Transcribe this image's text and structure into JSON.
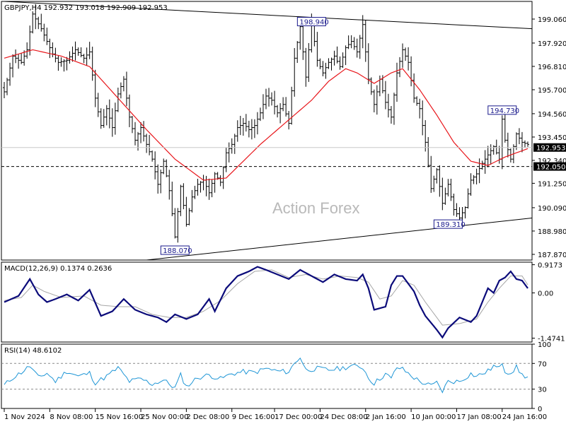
{
  "window": {
    "header": "GBPJPY,H4  192.932 193.018 192.909 192.953",
    "watermark": "Action Forex"
  },
  "colors": {
    "price": "#000000",
    "ma": "#e8161b",
    "macd": "#0b0b7a",
    "signal": "#a6a6a6",
    "rsi": "#1f96d6",
    "grid": "#c8c8c8",
    "tag_current": "#000000",
    "tag_level": "#000000",
    "annotation_border": "#1a1a8c"
  },
  "chart_data": [
    {
      "type": "line",
      "name": "price",
      "ylim": [
        187.6,
        199.9
      ],
      "yticks": [
        {
          "label": "199.060",
          "value": 199.06
        },
        {
          "label": "197.920",
          "value": 197.92
        },
        {
          "label": "196.810",
          "value": 196.81
        },
        {
          "label": "195.700",
          "value": 195.7
        },
        {
          "label": "194.560",
          "value": 194.56
        },
        {
          "label": "193.450",
          "value": 193.45
        },
        {
          "label": "192.340",
          "value": 192.34
        },
        {
          "label": "191.250",
          "value": 191.25
        },
        {
          "label": "190.090",
          "value": 190.09
        },
        {
          "label": "188.980",
          "value": 188.98
        },
        {
          "label": "187.870",
          "value": 187.87
        }
      ],
      "price_tags": [
        {
          "label": "192.953",
          "value": 192.953,
          "style": "current"
        },
        {
          "label": "192.050",
          "value": 192.05,
          "style": "level"
        }
      ],
      "annotations": [
        {
          "label": "198.940",
          "value": 198.94,
          "bar": 108
        },
        {
          "label": "188.070",
          "value": 188.07,
          "bar": 60
        },
        {
          "label": "194.730",
          "value": 194.73,
          "bar": 175
        },
        {
          "label": "189.310",
          "value": 189.31,
          "bar": 156
        }
      ],
      "close_anchors": [
        [
          0,
          195.6
        ],
        [
          3,
          197.3
        ],
        [
          6,
          197.0
        ],
        [
          8,
          197.6
        ],
        [
          10,
          199.3
        ],
        [
          13,
          198.6
        ],
        [
          15,
          198.0
        ],
        [
          17,
          197.4
        ],
        [
          19,
          197.0
        ],
        [
          22,
          197.1
        ],
        [
          25,
          197.6
        ],
        [
          28,
          197.2
        ],
        [
          30,
          197.5
        ],
        [
          32,
          195.3
        ],
        [
          34,
          194.0
        ],
        [
          36,
          194.8
        ],
        [
          38,
          193.9
        ],
        [
          40,
          195.5
        ],
        [
          42,
          196.2
        ],
        [
          44,
          194.4
        ],
        [
          46,
          193.3
        ],
        [
          48,
          193.9
        ],
        [
          50,
          193.1
        ],
        [
          52,
          192.4
        ],
        [
          54,
          191.2
        ],
        [
          56,
          192.3
        ],
        [
          58,
          190.9
        ],
        [
          60,
          188.7
        ],
        [
          62,
          191.1
        ],
        [
          64,
          189.3
        ],
        [
          66,
          190.6
        ],
        [
          68,
          191.2
        ],
        [
          70,
          191.4
        ],
        [
          72,
          190.8
        ],
        [
          74,
          191.7
        ],
        [
          76,
          191.3
        ],
        [
          78,
          192.7
        ],
        [
          80,
          193.1
        ],
        [
          82,
          193.9
        ],
        [
          84,
          194.1
        ],
        [
          86,
          193.8
        ],
        [
          88,
          194.0
        ],
        [
          90,
          194.6
        ],
        [
          92,
          195.4
        ],
        [
          94,
          195.2
        ],
        [
          96,
          194.6
        ],
        [
          98,
          195.0
        ],
        [
          100,
          194.1
        ],
        [
          102,
          197.2
        ],
        [
          104,
          198.7
        ],
        [
          106,
          196.3
        ],
        [
          108,
          198.9
        ],
        [
          110,
          197.1
        ],
        [
          112,
          196.5
        ],
        [
          114,
          197.0
        ],
        [
          116,
          197.3
        ],
        [
          118,
          196.8
        ],
        [
          120,
          197.7
        ],
        [
          122,
          198.0
        ],
        [
          124,
          197.5
        ],
        [
          126,
          198.8
        ],
        [
          128,
          196.2
        ],
        [
          130,
          195.0
        ],
        [
          132,
          196.2
        ],
        [
          134,
          195.1
        ],
        [
          136,
          194.4
        ],
        [
          138,
          196.5
        ],
        [
          140,
          197.6
        ],
        [
          142,
          197.0
        ],
        [
          144,
          195.3
        ],
        [
          146,
          194.8
        ],
        [
          148,
          193.2
        ],
        [
          150,
          191.0
        ],
        [
          152,
          191.9
        ],
        [
          154,
          190.3
        ],
        [
          156,
          191.2
        ],
        [
          158,
          190.0
        ],
        [
          160,
          189.6
        ],
        [
          162,
          190.1
        ],
        [
          164,
          191.4
        ],
        [
          166,
          191.7
        ],
        [
          168,
          192.2
        ],
        [
          170,
          192.6
        ],
        [
          172,
          193.0
        ],
        [
          174,
          192.4
        ],
        [
          175,
          194.3
        ],
        [
          176,
          193.3
        ],
        [
          178,
          192.4
        ],
        [
          180,
          193.6
        ],
        [
          182,
          193.2
        ],
        [
          184,
          193.1
        ]
      ],
      "ma_anchors": [
        [
          0,
          197.2
        ],
        [
          10,
          197.6
        ],
        [
          20,
          197.3
        ],
        [
          30,
          196.8
        ],
        [
          40,
          195.3
        ],
        [
          50,
          193.8
        ],
        [
          60,
          192.4
        ],
        [
          70,
          191.4
        ],
        [
          78,
          191.5
        ],
        [
          84,
          192.3
        ],
        [
          90,
          193.1
        ],
        [
          96,
          193.8
        ],
        [
          102,
          194.5
        ],
        [
          108,
          195.2
        ],
        [
          114,
          196.1
        ],
        [
          120,
          196.7
        ],
        [
          124,
          196.5
        ],
        [
          130,
          196.0
        ],
        [
          136,
          196.5
        ],
        [
          140,
          196.7
        ],
        [
          146,
          195.7
        ],
        [
          152,
          194.5
        ],
        [
          158,
          193.2
        ],
        [
          164,
          192.3
        ],
        [
          170,
          192.1
        ],
        [
          176,
          192.5
        ],
        [
          184,
          192.9
        ]
      ],
      "trendlines": [
        {
          "from": [
            0,
            199.9
          ],
          "to": [
            186,
            198.6
          ]
        },
        {
          "from": [
            50,
            187.6
          ],
          "to": [
            186,
            189.6
          ]
        }
      ],
      "support_level": 192.05,
      "bars": 185
    },
    {
      "type": "line",
      "name": "MACD",
      "label": "MACD(12,26,9) 0.1374 0.2636",
      "ylim": [
        -1.6,
        1.0
      ],
      "yticks": [
        {
          "label": "0.9173",
          "value": 0.9173
        },
        {
          "label": "0.00",
          "value": 0.0
        },
        {
          "label": "-1.4741",
          "value": -1.4741
        }
      ],
      "macd_anchors": [
        [
          0,
          -0.3
        ],
        [
          5,
          -0.1
        ],
        [
          9,
          0.45
        ],
        [
          12,
          -0.05
        ],
        [
          15,
          -0.3
        ],
        [
          18,
          -0.2
        ],
        [
          22,
          -0.05
        ],
        [
          26,
          -0.25
        ],
        [
          30,
          0.1
        ],
        [
          34,
          -0.75
        ],
        [
          38,
          -0.6
        ],
        [
          42,
          -0.2
        ],
        [
          46,
          -0.55
        ],
        [
          50,
          -0.7
        ],
        [
          54,
          -0.8
        ],
        [
          57,
          -0.95
        ],
        [
          60,
          -0.7
        ],
        [
          64,
          -0.85
        ],
        [
          68,
          -0.7
        ],
        [
          72,
          -0.2
        ],
        [
          74,
          -0.6
        ],
        [
          78,
          0.15
        ],
        [
          82,
          0.55
        ],
        [
          86,
          0.7
        ],
        [
          89,
          0.85
        ],
        [
          92,
          0.75
        ],
        [
          96,
          0.6
        ],
        [
          100,
          0.45
        ],
        [
          104,
          0.75
        ],
        [
          108,
          0.55
        ],
        [
          112,
          0.35
        ],
        [
          116,
          0.6
        ],
        [
          120,
          0.45
        ],
        [
          124,
          0.4
        ],
        [
          126,
          0.6
        ],
        [
          128,
          0.15
        ],
        [
          130,
          -0.55
        ],
        [
          134,
          -0.45
        ],
        [
          136,
          0.25
        ],
        [
          138,
          0.55
        ],
        [
          140,
          0.55
        ],
        [
          144,
          0.05
        ],
        [
          146,
          -0.4
        ],
        [
          148,
          -0.75
        ],
        [
          152,
          -1.2
        ],
        [
          154,
          -1.45
        ],
        [
          156,
          -1.15
        ],
        [
          160,
          -0.8
        ],
        [
          164,
          -0.95
        ],
        [
          166,
          -0.75
        ],
        [
          170,
          0.15
        ],
        [
          172,
          0.0
        ],
        [
          174,
          0.4
        ],
        [
          176,
          0.5
        ],
        [
          178,
          0.7
        ],
        [
          180,
          0.45
        ],
        [
          182,
          0.4
        ],
        [
          184,
          0.15
        ]
      ],
      "signal_anchors": [
        [
          0,
          -0.25
        ],
        [
          6,
          -0.15
        ],
        [
          10,
          0.25
        ],
        [
          14,
          0.05
        ],
        [
          20,
          -0.15
        ],
        [
          28,
          -0.1
        ],
        [
          34,
          -0.4
        ],
        [
          40,
          -0.45
        ],
        [
          46,
          -0.45
        ],
        [
          52,
          -0.7
        ],
        [
          58,
          -0.8
        ],
        [
          64,
          -0.8
        ],
        [
          70,
          -0.6
        ],
        [
          76,
          -0.25
        ],
        [
          82,
          0.3
        ],
        [
          88,
          0.7
        ],
        [
          94,
          0.75
        ],
        [
          100,
          0.5
        ],
        [
          106,
          0.6
        ],
        [
          112,
          0.45
        ],
        [
          118,
          0.55
        ],
        [
          124,
          0.5
        ],
        [
          128,
          0.35
        ],
        [
          132,
          -0.2
        ],
        [
          136,
          -0.1
        ],
        [
          140,
          0.4
        ],
        [
          144,
          0.25
        ],
        [
          148,
          -0.3
        ],
        [
          154,
          -1.05
        ],
        [
          160,
          -1.0
        ],
        [
          166,
          -0.85
        ],
        [
          170,
          -0.3
        ],
        [
          174,
          0.15
        ],
        [
          178,
          0.55
        ],
        [
          182,
          0.55
        ],
        [
          184,
          0.26
        ]
      ],
      "bars": 185
    },
    {
      "type": "line",
      "name": "RSI",
      "label": "RSI(14) 48.6102",
      "ylim": [
        0,
        100
      ],
      "yticks": [
        {
          "label": "100",
          "value": 100
        },
        {
          "label": "70",
          "value": 70
        },
        {
          "label": "30",
          "value": 30
        },
        {
          "label": "0",
          "value": 0
        }
      ],
      "dashed_levels": [
        70,
        30
      ],
      "rsi_anchors": [
        [
          0,
          36
        ],
        [
          3,
          48
        ],
        [
          6,
          56
        ],
        [
          9,
          66
        ],
        [
          12,
          48
        ],
        [
          15,
          55
        ],
        [
          18,
          42
        ],
        [
          22,
          58
        ],
        [
          26,
          50
        ],
        [
          30,
          55
        ],
        [
          32,
          40
        ],
        [
          36,
          50
        ],
        [
          40,
          63
        ],
        [
          44,
          42
        ],
        [
          48,
          46
        ],
        [
          52,
          38
        ],
        [
          56,
          44
        ],
        [
          60,
          32
        ],
        [
          62,
          52
        ],
        [
          64,
          34
        ],
        [
          68,
          48
        ],
        [
          72,
          52
        ],
        [
          76,
          46
        ],
        [
          80,
          54
        ],
        [
          84,
          57
        ],
        [
          88,
          56
        ],
        [
          92,
          62
        ],
        [
          96,
          58
        ],
        [
          100,
          57
        ],
        [
          102,
          70
        ],
        [
          104,
          80
        ],
        [
          106,
          60
        ],
        [
          110,
          62
        ],
        [
          114,
          60
        ],
        [
          118,
          62
        ],
        [
          122,
          66
        ],
        [
          126,
          64
        ],
        [
          128,
          48
        ],
        [
          130,
          39
        ],
        [
          134,
          54
        ],
        [
          136,
          46
        ],
        [
          138,
          64
        ],
        [
          140,
          61
        ],
        [
          144,
          48
        ],
        [
          146,
          42
        ],
        [
          150,
          35
        ],
        [
          152,
          40
        ],
        [
          154,
          27
        ],
        [
          156,
          42
        ],
        [
          160,
          42
        ],
        [
          164,
          54
        ],
        [
          166,
          50
        ],
        [
          170,
          58
        ],
        [
          172,
          66
        ],
        [
          174,
          62
        ],
        [
          175,
          72
        ],
        [
          176,
          58
        ],
        [
          178,
          56
        ],
        [
          180,
          64
        ],
        [
          182,
          52
        ],
        [
          184,
          48.6
        ]
      ],
      "bars": 185
    }
  ],
  "xaxis": {
    "ticks": [
      {
        "label": "1 Nov 2024",
        "bar": 0
      },
      {
        "label": "8 Nov 08:00",
        "bar": 16
      },
      {
        "label": "15 Nov 16:00",
        "bar": 32
      },
      {
        "label": "25 Nov 00:00",
        "bar": 48
      },
      {
        "label": "2 Dec 08:00",
        "bar": 64
      },
      {
        "label": "9 Dec 16:00",
        "bar": 80
      },
      {
        "label": "17 Dec 00:00",
        "bar": 95
      },
      {
        "label": "24 Dec 08:00",
        "bar": 111
      },
      {
        "label": "2 Jan 16:00",
        "bar": 127
      },
      {
        "label": "10 Jan 00:00",
        "bar": 143
      },
      {
        "label": "17 Jan 08:00",
        "bar": 159
      },
      {
        "label": "24 Jan 16:00",
        "bar": 175
      }
    ]
  }
}
